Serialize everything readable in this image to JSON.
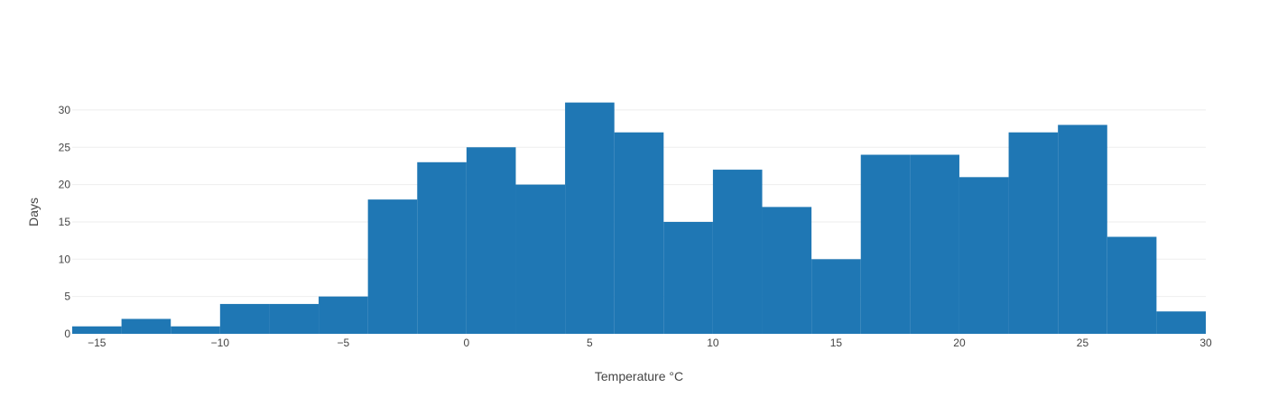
{
  "chart_data": {
    "type": "bar",
    "subtype": "histogram",
    "title": "",
    "xlabel": "Temperature °C",
    "ylabel": "Days",
    "bin_width": 2,
    "bins": [
      {
        "x0": -16,
        "x1": -14,
        "count": 1
      },
      {
        "x0": -14,
        "x1": -12,
        "count": 2
      },
      {
        "x0": -12,
        "x1": -10,
        "count": 1
      },
      {
        "x0": -10,
        "x1": -8,
        "count": 4
      },
      {
        "x0": -8,
        "x1": -6,
        "count": 4
      },
      {
        "x0": -6,
        "x1": -4,
        "count": 5
      },
      {
        "x0": -4,
        "x1": -2,
        "count": 18
      },
      {
        "x0": -2,
        "x1": 0,
        "count": 23
      },
      {
        "x0": 0,
        "x1": 2,
        "count": 25
      },
      {
        "x0": 2,
        "x1": 4,
        "count": 20
      },
      {
        "x0": 4,
        "x1": 6,
        "count": 31
      },
      {
        "x0": 6,
        "x1": 8,
        "count": 27
      },
      {
        "x0": 8,
        "x1": 10,
        "count": 15
      },
      {
        "x0": 10,
        "x1": 12,
        "count": 22
      },
      {
        "x0": 12,
        "x1": 14,
        "count": 17
      },
      {
        "x0": 14,
        "x1": 16,
        "count": 10
      },
      {
        "x0": 16,
        "x1": 18,
        "count": 24
      },
      {
        "x0": 18,
        "x1": 20,
        "count": 24
      },
      {
        "x0": 20,
        "x1": 22,
        "count": 21
      },
      {
        "x0": 22,
        "x1": 24,
        "count": 27
      },
      {
        "x0": 24,
        "x1": 26,
        "count": 28
      },
      {
        "x0": 26,
        "x1": 28,
        "count": 13
      },
      {
        "x0": 28,
        "x1": 30,
        "count": 3
      }
    ],
    "xlim": [
      -16,
      30
    ],
    "ylim": [
      0,
      31
    ],
    "x_ticks": [
      {
        "value": -15,
        "label": "−15"
      },
      {
        "value": -10,
        "label": "−10"
      },
      {
        "value": -5,
        "label": "−5"
      },
      {
        "value": 0,
        "label": "0"
      },
      {
        "value": 5,
        "label": "5"
      },
      {
        "value": 10,
        "label": "10"
      },
      {
        "value": 15,
        "label": "15"
      },
      {
        "value": 20,
        "label": "20"
      },
      {
        "value": 25,
        "label": "25"
      },
      {
        "value": 30,
        "label": "30"
      }
    ],
    "y_ticks": [
      {
        "value": 0,
        "label": "0"
      },
      {
        "value": 5,
        "label": "5"
      },
      {
        "value": 10,
        "label": "10"
      },
      {
        "value": 15,
        "label": "15"
      },
      {
        "value": 20,
        "label": "20"
      },
      {
        "value": 25,
        "label": "25"
      },
      {
        "value": 30,
        "label": "30"
      }
    ],
    "grid": true,
    "legend": "none",
    "bar_color": "#1f77b4"
  }
}
